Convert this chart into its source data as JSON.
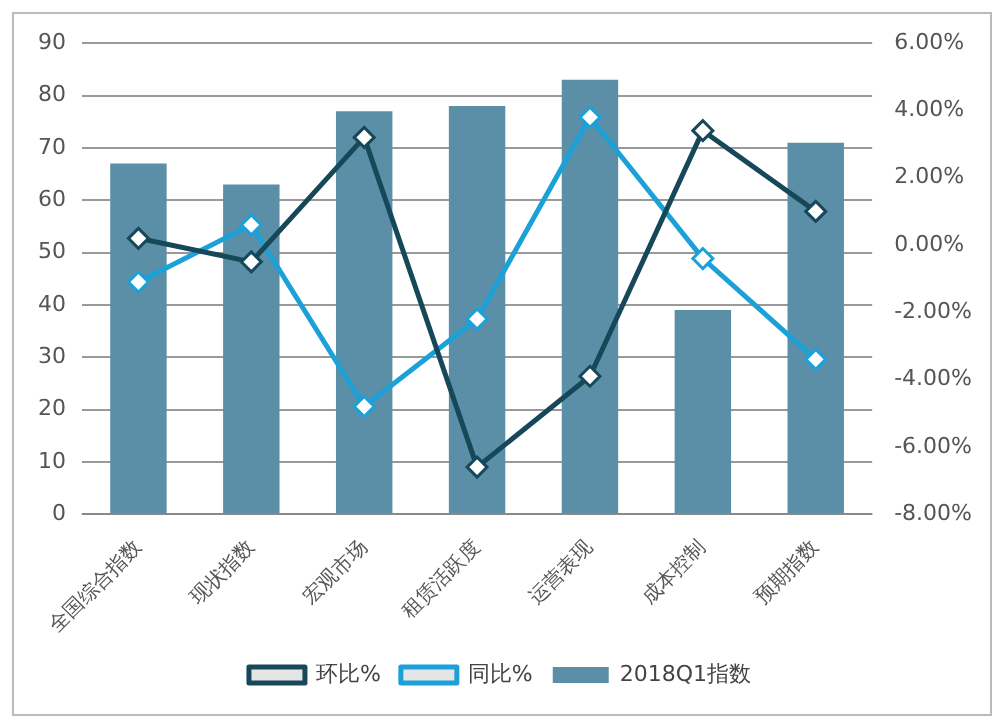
{
  "chart_data": {
    "type": "bar",
    "categories": [
      "全国综合指数",
      "现状指数",
      "宏观市场",
      "租赁活跃度",
      "运营表现",
      "成本控制",
      "预期指数"
    ],
    "series": [
      {
        "name": "2018Q1指数",
        "color": "#5b8fa8",
        "values": [
          67,
          63,
          77,
          78,
          83,
          39,
          71
        ]
      },
      {
        "name": "环比%",
        "type": "line",
        "axis": "y2",
        "color": "#17485a",
        "values": [
          0.2,
          -0.5,
          3.2,
          -6.6,
          -3.9,
          3.4,
          1.0
        ]
      },
      {
        "name": "同比%",
        "type": "line",
        "axis": "y2",
        "color": "#1ba1d8",
        "values": [
          -1.1,
          0.6,
          -4.8,
          -2.2,
          3.8,
          -0.4,
          -3.4
        ]
      }
    ],
    "ylim": [
      0,
      90
    ],
    "yticks": [
      0,
      10,
      20,
      30,
      40,
      50,
      60,
      70,
      80,
      90
    ],
    "y2lim": [
      -8,
      6
    ],
    "y2ticks": [
      {
        "value": -8,
        "label": "-8.00%"
      },
      {
        "value": -6,
        "label": "-6.00%"
      },
      {
        "value": -4,
        "label": "-4.00%"
      },
      {
        "value": -2,
        "label": "-2.00%"
      },
      {
        "value": 0,
        "label": "0.00%"
      },
      {
        "value": 2,
        "label": "2.00%"
      },
      {
        "value": 4,
        "label": "4.00%"
      },
      {
        "value": 6,
        "label": "6.00%"
      }
    ],
    "grid": "y",
    "legend": "bottom",
    "marker": "diamond"
  }
}
